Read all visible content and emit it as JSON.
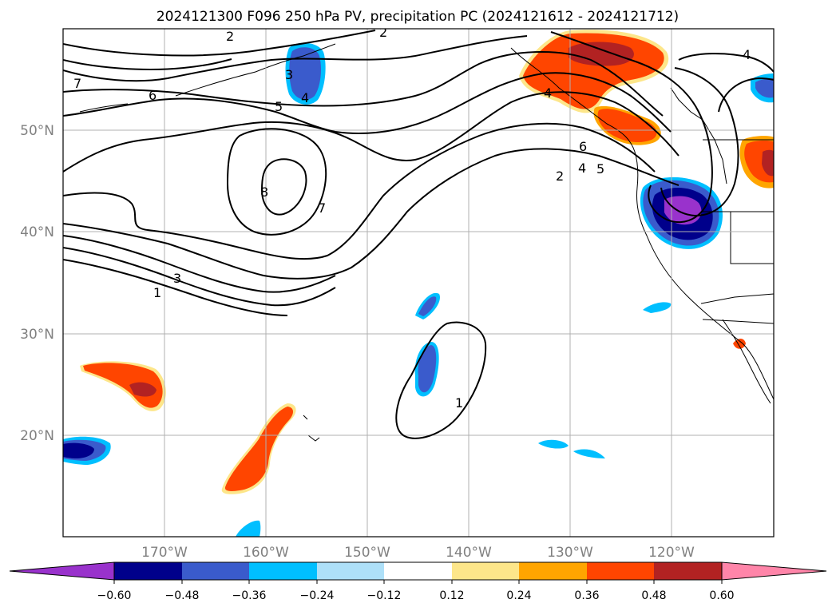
{
  "title": "2024121300 F096 250 hPa PV, precipitation PC (2024121612 - 2024121712)",
  "map": {
    "lat_labels": [
      "50°N",
      "40°N",
      "30°N",
      "20°N"
    ],
    "lon_labels": [
      "170°W",
      "160°W",
      "150°W",
      "140°W",
      "130°W",
      "120°W"
    ],
    "lon_range": [
      -180,
      -110
    ],
    "lat_range": [
      10,
      60
    ]
  },
  "colorbar": {
    "ticks": [
      "−0.60",
      "−0.48",
      "−0.36",
      "−0.24",
      "−0.12",
      "0.12",
      "0.24",
      "0.36",
      "0.48",
      "0.60"
    ],
    "colors": [
      "#9932cc",
      "#00008b",
      "#3a5bcc",
      "#00bfff",
      "#aee0f8",
      "#ffffff",
      "#fde68a",
      "#ffa500",
      "#ff4500",
      "#b22222",
      "#ff85a9"
    ]
  },
  "pv_contours": {
    "labels": [
      "2",
      "2",
      "4",
      "3",
      "4",
      "5",
      "6",
      "7",
      "8",
      "7",
      "1",
      "3",
      "6",
      "4",
      "5",
      "2",
      "4",
      "1"
    ]
  }
}
